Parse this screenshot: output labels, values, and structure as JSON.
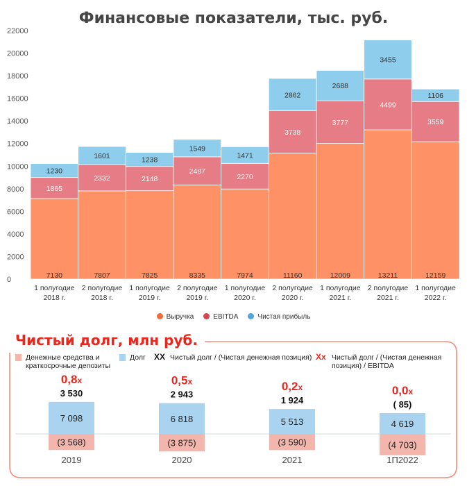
{
  "chart_data": [
    {
      "type": "bar",
      "stacked": true,
      "title": "Финансовые показатели, тыс. руб.",
      "categories": [
        [
          "1 полугодие",
          "2018 г."
        ],
        [
          "2 полугодие",
          "2018 г."
        ],
        [
          "1 полугодие",
          "2019 г."
        ],
        [
          "2 полугодие",
          "2019 г."
        ],
        [
          "1 полугодие",
          "2020 г."
        ],
        [
          "2 полугодие",
          "2020 г."
        ],
        [
          "1 полугодие",
          "2021 г."
        ],
        [
          "2 полугодие",
          "2021 г."
        ],
        [
          "1 полугодие",
          "2022 г."
        ]
      ],
      "series": [
        {
          "name": "Выручка",
          "color": "#fe9166",
          "values": [
            7130,
            7807,
            7825,
            8335,
            7974,
            11160,
            12009,
            13211,
            12159
          ]
        },
        {
          "name": "EBITDA",
          "color": "#e67d86",
          "values": [
            1865,
            2332,
            2148,
            2487,
            2270,
            3738,
            3777,
            4499,
            3559
          ]
        },
        {
          "name": "Чистая прибыль",
          "color": "#8ecdeb",
          "values": [
            1230,
            1601,
            1238,
            1549,
            1471,
            2862,
            2688,
            3455,
            1106
          ]
        }
      ],
      "ylim": [
        0,
        22000
      ],
      "yticks": [
        0,
        2000,
        4000,
        6000,
        8000,
        10000,
        12000,
        14000,
        16000,
        18000,
        20000,
        22000
      ],
      "legend_dot_colors": [
        "#f26b3a",
        "#d9454e",
        "#4ea8dd"
      ],
      "grid": false,
      "legend": "bottom"
    },
    {
      "type": "bar",
      "stacked": true,
      "title": "Чистый долг, млн руб.",
      "categories": [
        "2019",
        "2020",
        "2021",
        "1П2022"
      ],
      "series": [
        {
          "name": "Денежные средства и краткосрочные депозиты",
          "color": "#f3b6ad",
          "values": [
            -3568,
            -3875,
            -3590,
            -4703
          ],
          "labels": [
            "(3 568)",
            "(3 875)",
            "(3 590)",
            "(4 703)"
          ]
        },
        {
          "name": "Долг",
          "color": "#a9d3ee",
          "values": [
            7098,
            6818,
            5513,
            4619
          ],
          "labels": [
            "7 098",
            "6 818",
            "5 513",
            "4 619"
          ]
        }
      ],
      "net_debt": {
        "name": "Чистый долг / (Чистая денежная позиция)",
        "marker": "XX",
        "values": [
          3530,
          2943,
          1924,
          -85
        ],
        "labels": [
          "3 530",
          "2 943",
          "1 924",
          "( 85)"
        ]
      },
      "ratio": {
        "name": "Чистый долг / (Чистая денежная позиция) / EBITDA",
        "marker": "Xx",
        "values": [
          0.8,
          0.5,
          0.2,
          0.0
        ],
        "labels": [
          "0,8",
          "0,5",
          "0,2",
          "0,0"
        ],
        "suffix": "x",
        "color": "#e8281e"
      },
      "legend": "top",
      "frame_color": "#f08f7a"
    }
  ]
}
